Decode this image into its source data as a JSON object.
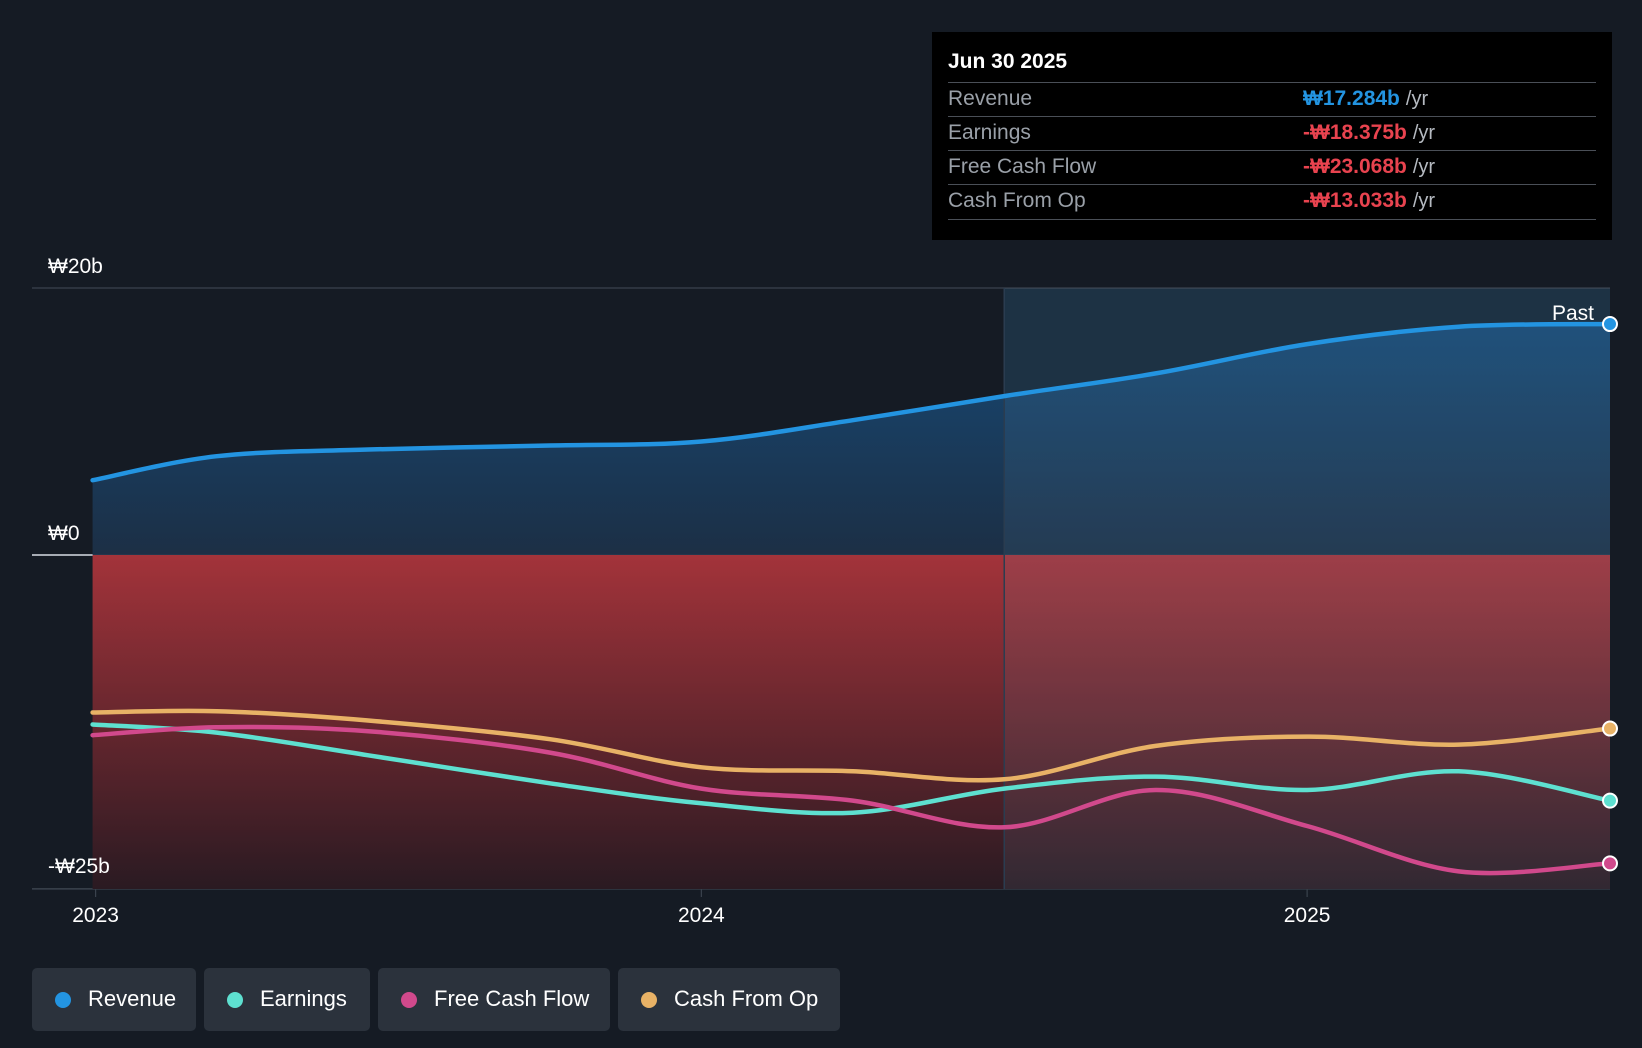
{
  "tooltip": {
    "date": "Jun 30 2025",
    "rows": [
      {
        "label": "Revenue",
        "value": "₩17.284b",
        "unit": "/yr",
        "color": "#2394e1"
      },
      {
        "label": "Earnings",
        "value": "-₩18.375b",
        "unit": "/yr",
        "color": "#e8434f"
      },
      {
        "label": "Free Cash Flow",
        "value": "-₩23.068b",
        "unit": "/yr",
        "color": "#e8434f"
      },
      {
        "label": "Cash From Op",
        "value": "-₩13.033b",
        "unit": "/yr",
        "color": "#e8434f"
      }
    ]
  },
  "past_label": "Past",
  "legend": [
    {
      "label": "Revenue",
      "color": "#2394e1"
    },
    {
      "label": "Earnings",
      "color": "#5ee0d0"
    },
    {
      "label": "Free Cash Flow",
      "color": "#d1498c"
    },
    {
      "label": "Cash From Op",
      "color": "#e8b266"
    }
  ],
  "chart_data": {
    "type": "line",
    "title": "",
    "x_ticks": [
      {
        "label": "2023",
        "value": 2023.0
      },
      {
        "label": "2024",
        "value": 2024.0
      },
      {
        "label": "2025",
        "value": 2025.0
      }
    ],
    "y_ticks": [
      {
        "label": "₩20b",
        "value": 20
      },
      {
        "label": "₩0",
        "value": 0
      },
      {
        "label": "-₩25b",
        "value": -25
      }
    ],
    "xlim": [
      2022.895,
      2025.5
    ],
    "ylim": [
      -25,
      20
    ],
    "past_start": 2024.5,
    "series": [
      {
        "name": "Revenue",
        "color": "#2394e1",
        "x": [
          2022.995,
          2023.2,
          2023.45,
          2023.75,
          2024.0,
          2024.25,
          2024.5,
          2024.75,
          2025.0,
          2025.25,
          2025.5
        ],
        "values": [
          5.6,
          7.4,
          7.9,
          8.2,
          8.5,
          10.1,
          11.9,
          13.6,
          15.8,
          17.1,
          17.3
        ]
      },
      {
        "name": "Earnings",
        "color": "#5ee0d0",
        "x": [
          2022.995,
          2023.2,
          2023.45,
          2023.75,
          2024.0,
          2024.25,
          2024.5,
          2024.75,
          2025.0,
          2025.25,
          2025.5
        ],
        "values": [
          -12.7,
          -13.3,
          -15.0,
          -17.1,
          -18.6,
          -19.3,
          -17.5,
          -16.6,
          -17.6,
          -16.2,
          -18.4
        ]
      },
      {
        "name": "Free Cash Flow",
        "color": "#d1498c",
        "x": [
          2022.995,
          2023.2,
          2023.45,
          2023.75,
          2024.0,
          2024.25,
          2024.5,
          2024.75,
          2025.0,
          2025.25,
          2025.5
        ],
        "values": [
          -13.5,
          -12.9,
          -13.2,
          -14.8,
          -17.5,
          -18.4,
          -20.4,
          -17.6,
          -20.3,
          -23.7,
          -23.1
        ]
      },
      {
        "name": "Cash From Op",
        "color": "#e8b266",
        "x": [
          2022.995,
          2023.2,
          2023.45,
          2023.75,
          2024.0,
          2024.25,
          2024.5,
          2024.75,
          2025.0,
          2025.25,
          2025.5
        ],
        "values": [
          -11.8,
          -11.7,
          -12.4,
          -13.8,
          -15.9,
          -16.2,
          -16.8,
          -14.3,
          -13.6,
          -14.2,
          -13.0
        ]
      }
    ]
  }
}
